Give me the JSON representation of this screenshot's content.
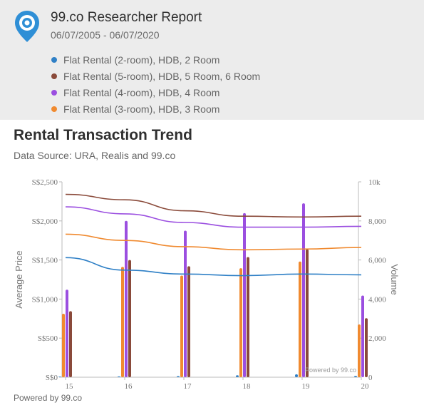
{
  "header": {
    "title": "99.co Researcher Report",
    "date_range": "06/07/2005 - 06/07/2020",
    "legend": [
      {
        "label": "Flat Rental (2-room), HDB, 2 Room",
        "color": "#2f80c6"
      },
      {
        "label": "Flat Rental (5-room), HDB, 5 Room, 6 Room",
        "color": "#8a4a3a"
      },
      {
        "label": "Flat Rental (4-room), HDB, 4 Room",
        "color": "#9b4fe0"
      },
      {
        "label": "Flat Rental (3-room), HDB, 3 Room",
        "color": "#f08a30"
      }
    ]
  },
  "chart": {
    "title": "Rental Transaction Trend",
    "source": "Data Source: URA, Realis and 99.co",
    "watermark": "Powered by 99.co"
  },
  "footer": {
    "text": "Powered by 99.co"
  },
  "chart_data": {
    "type": "line",
    "ylabel": "Average Price",
    "y2label": "Volume",
    "ylim": [
      0,
      2500
    ],
    "y2lim": [
      0,
      10000
    ],
    "x": [
      "15",
      "16",
      "17",
      "18",
      "19",
      "20"
    ],
    "yticks": [
      "S$0",
      "S$500",
      "S$1,000",
      "S$1,500",
      "S$2,000",
      "S$2,500"
    ],
    "y2ticks": [
      "0",
      "2,000",
      "4,000",
      "6,000",
      "8,000",
      "10k"
    ],
    "price_series": [
      {
        "name": "Flat Rental (2-room), HDB, 2 Room",
        "color": "#2f80c6",
        "values": [
          1530,
          1370,
          1320,
          1300,
          1320,
          1310
        ]
      },
      {
        "name": "Flat Rental (5-room), HDB, 5 Room, 6 Room",
        "color": "#8a4a3a",
        "values": [
          2340,
          2270,
          2130,
          2060,
          2050,
          2060
        ]
      },
      {
        "name": "Flat Rental (4-room), HDB, 4 Room",
        "color": "#9b4fe0",
        "values": [
          2180,
          2090,
          1980,
          1920,
          1920,
          1930
        ]
      },
      {
        "name": "Flat Rental (3-room), HDB, 3 Room",
        "color": "#f08a30",
        "values": [
          1830,
          1750,
          1670,
          1630,
          1640,
          1660
        ]
      }
    ],
    "volume_series": [
      {
        "name": "Flat Rental (2-room), HDB, 2 Room",
        "color": "#2f80c6",
        "values": [
          30,
          40,
          60,
          100,
          150,
          70
        ]
      },
      {
        "name": "Flat Rental (3-room), HDB, 3 Room",
        "color": "#f08a30",
        "values": [
          3250,
          5650,
          5200,
          5580,
          5920,
          2700
        ]
      },
      {
        "name": "Flat Rental (4-room), HDB, 4 Room",
        "color": "#9b4fe0",
        "values": [
          4480,
          8000,
          7500,
          8400,
          8900,
          4180
        ]
      },
      {
        "name": "Flat Rental (5-room), HDB, 5 Room, 6 Room",
        "color": "#8a4a3a",
        "values": [
          3380,
          6000,
          5680,
          6150,
          6550,
          3020
        ]
      }
    ]
  }
}
